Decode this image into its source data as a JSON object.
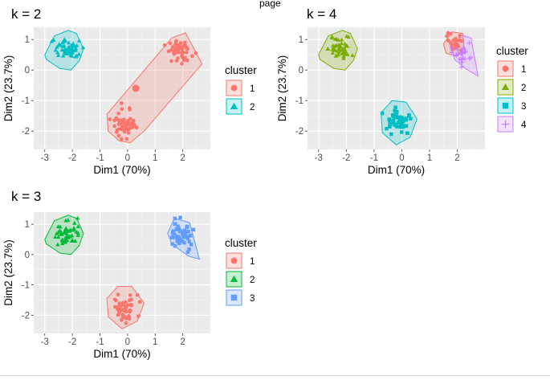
{
  "page": {
    "top_clipped_text": "page"
  },
  "colors": {
    "panel_bg": "#EBEBEB",
    "grid_major": "#FFFFFF",
    "grid_minor": "#F5F5F5",
    "tick_text": "#4D4D4D",
    "footer_line": "#D9D9D9"
  },
  "chart_data": [
    {
      "id": "k2",
      "type": "scatter",
      "title": "k = 2",
      "xlabel": "Dim1 (70%)",
      "ylabel": "Dim2 (23.7%)",
      "xlim": [
        -3.4,
        3.0
      ],
      "ylim": [
        -2.6,
        1.4
      ],
      "xticks": [
        -3,
        -2,
        -1,
        0,
        1,
        2
      ],
      "yticks": [
        -2,
        -1,
        0,
        1
      ],
      "grid": true,
      "legend": {
        "title": "cluster",
        "placement": "right",
        "entries": [
          {
            "label": "1",
            "color": "#F8766D",
            "shape": "circle"
          },
          {
            "label": "2",
            "color": "#00BFC4",
            "shape": "triangle"
          }
        ]
      },
      "clusters": [
        {
          "name": "1",
          "color": "#F8766D",
          "shape": "circle",
          "center": {
            "x": 0.3,
            "y": -0.6
          },
          "groups": [
            {
              "cx": 1.9,
              "cy": 0.6,
              "sx": 0.22,
              "sy": 0.18,
              "n": 50
            },
            {
              "cx": -0.1,
              "cy": -1.75,
              "sx": 0.22,
              "sy": 0.22,
              "n": 50
            }
          ],
          "hull": [
            [
              0.1,
              -2.38
            ],
            [
              0.6,
              -2.0
            ],
            [
              2.7,
              0.2
            ],
            [
              2.1,
              1.22
            ],
            [
              1.6,
              1.05
            ],
            [
              -0.75,
              -1.45
            ],
            [
              -0.7,
              -2.0
            ],
            [
              -0.3,
              -2.32
            ]
          ]
        },
        {
          "name": "2",
          "color": "#00BFC4",
          "shape": "triangle",
          "center": {
            "x": -2.2,
            "y": 0.6
          },
          "groups": [
            {
              "cx": -2.2,
              "cy": 0.7,
              "sx": 0.22,
              "sy": 0.2,
              "n": 50
            }
          ],
          "hull": [
            [
              -3.0,
              0.5
            ],
            [
              -2.65,
              1.12
            ],
            [
              -2.15,
              1.3
            ],
            [
              -1.85,
              1.2
            ],
            [
              -1.6,
              0.7
            ],
            [
              -1.75,
              0.3
            ],
            [
              -2.05,
              0.0
            ],
            [
              -2.45,
              0.05
            ],
            [
              -2.95,
              0.35
            ]
          ]
        }
      ]
    },
    {
      "id": "k4",
      "type": "scatter",
      "title": "k = 4",
      "xlabel": "Dim1 (70%)",
      "ylabel": "Dim2 (23.7%)",
      "xlim": [
        -3.4,
        3.0
      ],
      "ylim": [
        -2.6,
        1.4
      ],
      "xticks": [
        -3,
        -2,
        -1,
        0,
        1,
        2
      ],
      "yticks": [
        -2,
        -1,
        0,
        1
      ],
      "grid": true,
      "legend": {
        "title": "cluster",
        "placement": "right",
        "entries": [
          {
            "label": "1",
            "color": "#F8766D",
            "shape": "circle"
          },
          {
            "label": "2",
            "color": "#7CAE00",
            "shape": "triangle"
          },
          {
            "label": "3",
            "color": "#00BFC4",
            "shape": "square"
          },
          {
            "label": "4",
            "color": "#C77CFF",
            "shape": "cross"
          }
        ]
      },
      "clusters": [
        {
          "name": "1",
          "color": "#F8766D",
          "shape": "circle",
          "groups": [
            {
              "cx": 1.9,
              "cy": 0.85,
              "sx": 0.18,
              "sy": 0.16,
              "n": 25
            }
          ],
          "hull": [
            [
              1.5,
              0.85
            ],
            [
              1.8,
              1.25
            ],
            [
              2.2,
              1.2
            ],
            [
              2.25,
              0.7
            ],
            [
              1.95,
              0.45
            ],
            [
              1.6,
              0.55
            ]
          ]
        },
        {
          "name": "2",
          "color": "#7CAE00",
          "shape": "triangle",
          "groups": [
            {
              "cx": -2.2,
              "cy": 0.7,
              "sx": 0.22,
              "sy": 0.2,
              "n": 50
            }
          ],
          "hull": [
            [
              -3.0,
              0.5
            ],
            [
              -2.65,
              1.12
            ],
            [
              -2.15,
              1.3
            ],
            [
              -1.85,
              1.2
            ],
            [
              -1.6,
              0.7
            ],
            [
              -1.75,
              0.3
            ],
            [
              -2.05,
              0.0
            ],
            [
              -2.45,
              0.05
            ],
            [
              -2.95,
              0.35
            ]
          ]
        },
        {
          "name": "3",
          "color": "#00BFC4",
          "shape": "square",
          "groups": [
            {
              "cx": -0.1,
              "cy": -1.75,
              "sx": 0.22,
              "sy": 0.22,
              "n": 50
            }
          ],
          "hull": [
            [
              -0.2,
              -2.45
            ],
            [
              0.3,
              -2.2
            ],
            [
              0.55,
              -1.6
            ],
            [
              0.15,
              -1.05
            ],
            [
              -0.35,
              -1.0
            ],
            [
              -0.75,
              -1.4
            ],
            [
              -0.7,
              -2.05
            ]
          ]
        },
        {
          "name": "4",
          "color": "#C77CFF",
          "shape": "cross",
          "groups": [
            {
              "cx": 2.2,
              "cy": 0.55,
              "sx": 0.17,
              "sy": 0.18,
              "n": 25
            }
          ],
          "hull": [
            [
              1.8,
              0.7
            ],
            [
              2.15,
              1.15
            ],
            [
              2.5,
              1.05
            ],
            [
              2.75,
              -0.2
            ],
            [
              2.3,
              0.05
            ],
            [
              1.9,
              0.35
            ]
          ]
        }
      ]
    },
    {
      "id": "k3",
      "type": "scatter",
      "title": "k = 3",
      "xlabel": "Dim1 (70%)",
      "ylabel": "Dim2 (23.7%)",
      "xlim": [
        -3.4,
        3.0
      ],
      "ylim": [
        -2.6,
        1.4
      ],
      "xticks": [
        -3,
        -2,
        -1,
        0,
        1,
        2
      ],
      "yticks": [
        -2,
        -1,
        0,
        1
      ],
      "grid": true,
      "legend": {
        "title": "cluster",
        "placement": "right",
        "entries": [
          {
            "label": "1",
            "color": "#F8766D",
            "shape": "circle"
          },
          {
            "label": "2",
            "color": "#00BA38",
            "shape": "triangle"
          },
          {
            "label": "3",
            "color": "#619CFF",
            "shape": "square"
          }
        ]
      },
      "clusters": [
        {
          "name": "1",
          "color": "#F8766D",
          "shape": "circle",
          "groups": [
            {
              "cx": -0.1,
              "cy": -1.75,
              "sx": 0.22,
              "sy": 0.22,
              "n": 50
            }
          ],
          "hull": [
            [
              -0.2,
              -2.45
            ],
            [
              0.35,
              -2.2
            ],
            [
              0.6,
              -1.6
            ],
            [
              0.15,
              -1.05
            ],
            [
              -0.35,
              -1.05
            ],
            [
              -0.75,
              -1.45
            ],
            [
              -0.7,
              -2.05
            ]
          ]
        },
        {
          "name": "2",
          "color": "#00BA38",
          "shape": "triangle",
          "groups": [
            {
              "cx": -2.2,
              "cy": 0.7,
              "sx": 0.22,
              "sy": 0.2,
              "n": 50
            }
          ],
          "hull": [
            [
              -3.0,
              0.5
            ],
            [
              -2.65,
              1.12
            ],
            [
              -2.15,
              1.3
            ],
            [
              -1.85,
              1.2
            ],
            [
              -1.6,
              0.7
            ],
            [
              -1.75,
              0.3
            ],
            [
              -2.05,
              0.0
            ],
            [
              -2.45,
              0.05
            ],
            [
              -2.95,
              0.35
            ]
          ]
        },
        {
          "name": "3",
          "color": "#619CFF",
          "shape": "square",
          "groups": [
            {
              "cx": 1.95,
              "cy": 0.65,
              "sx": 0.22,
              "sy": 0.2,
              "n": 50
            }
          ],
          "hull": [
            [
              1.45,
              0.7
            ],
            [
              1.7,
              1.2
            ],
            [
              2.25,
              1.05
            ],
            [
              2.6,
              -0.15
            ],
            [
              2.2,
              -0.05
            ],
            [
              1.6,
              0.35
            ]
          ]
        }
      ]
    }
  ]
}
